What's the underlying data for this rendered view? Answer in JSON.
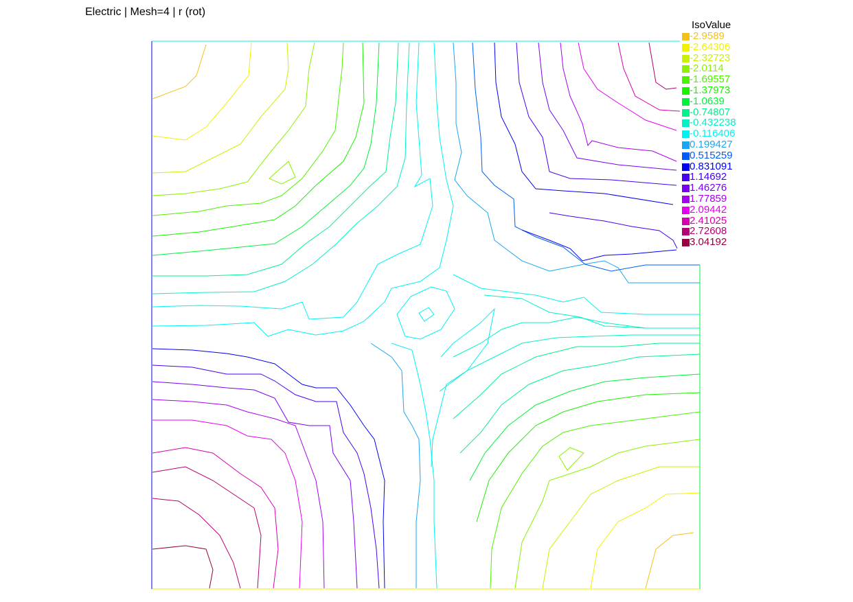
{
  "title": "Electric | Mesh=4 | r (rot)",
  "legend": {
    "title": "IsoValue",
    "entries": [
      {
        "value": "-2.9589",
        "color": "#f2c21a"
      },
      {
        "value": "-2.64306",
        "color": "#f2f200"
      },
      {
        "value": "-2.32723",
        "color": "#c9f200"
      },
      {
        "value": "-2.0114",
        "color": "#8cf200"
      },
      {
        "value": "-1.69557",
        "color": "#4df200"
      },
      {
        "value": "-1.37973",
        "color": "#1af200"
      },
      {
        "value": "-1.0639",
        "color": "#00f23a"
      },
      {
        "value": "-0.74807",
        "color": "#00f28c"
      },
      {
        "value": "-0.432238",
        "color": "#00f2c6"
      },
      {
        "value": "-0.116406",
        "color": "#00f2f2"
      },
      {
        "value": "0.199427",
        "color": "#1aa6f2"
      },
      {
        "value": "0.515259",
        "color": "#005cf2"
      },
      {
        "value": "0.831091",
        "color": "#0000f2"
      },
      {
        "value": "1.14692",
        "color": "#4600f2"
      },
      {
        "value": "1.46276",
        "color": "#7a00f2"
      },
      {
        "value": "1.77859",
        "color": "#a600f2"
      },
      {
        "value": "2.09442",
        "color": "#e600f2"
      },
      {
        "value": "2.41025",
        "color": "#d600b0"
      },
      {
        "value": "2.72608",
        "color": "#b30073"
      },
      {
        "value": "3.04192",
        "color": "#960040"
      }
    ]
  },
  "frame_colors": {
    "top": "#00f2f2",
    "bottom": "#f2f200",
    "left": "#0000f2",
    "right": "#00f23a"
  }
}
